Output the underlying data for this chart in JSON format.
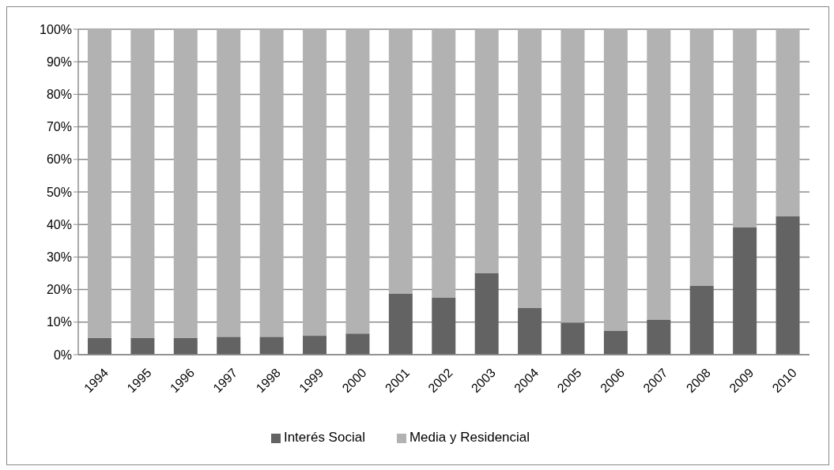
{
  "chart_data": {
    "type": "bar",
    "stacked": true,
    "categories": [
      "1994",
      "1995",
      "1996",
      "1997",
      "1998",
      "1999",
      "2000",
      "2001",
      "2002",
      "2003",
      "2004",
      "2005",
      "2006",
      "2007",
      "2008",
      "2009",
      "2010"
    ],
    "series": [
      {
        "name": "Interés Social",
        "color": "#636363",
        "values": [
          5.2,
          5.2,
          5.2,
          5.5,
          5.5,
          5.8,
          6.5,
          18.7,
          17.5,
          25.1,
          14.3,
          9.9,
          7.4,
          10.7,
          21.1,
          39.1,
          42.6
        ]
      },
      {
        "name": "Media y Residencial",
        "color": "#b2b2b2",
        "values": [
          94.8,
          94.8,
          94.8,
          94.5,
          94.5,
          94.2,
          93.5,
          81.3,
          82.5,
          74.9,
          85.7,
          90.1,
          92.6,
          89.3,
          78.9,
          60.9,
          57.4
        ]
      }
    ],
    "ylim": [
      0,
      100
    ],
    "yticks": [
      {
        "value": 0,
        "label": "0%"
      },
      {
        "value": 10,
        "label": "10%"
      },
      {
        "value": 20,
        "label": "20%"
      },
      {
        "value": 30,
        "label": "30%"
      },
      {
        "value": 40,
        "label": "40%"
      },
      {
        "value": 50,
        "label": "50%"
      },
      {
        "value": 60,
        "label": "60%"
      },
      {
        "value": 70,
        "label": "70%"
      },
      {
        "value": 80,
        "label": "80%"
      },
      {
        "value": 90,
        "label": "90%"
      },
      {
        "value": 100,
        "label": "100%"
      }
    ],
    "grid": "y",
    "legend": "bottom"
  }
}
